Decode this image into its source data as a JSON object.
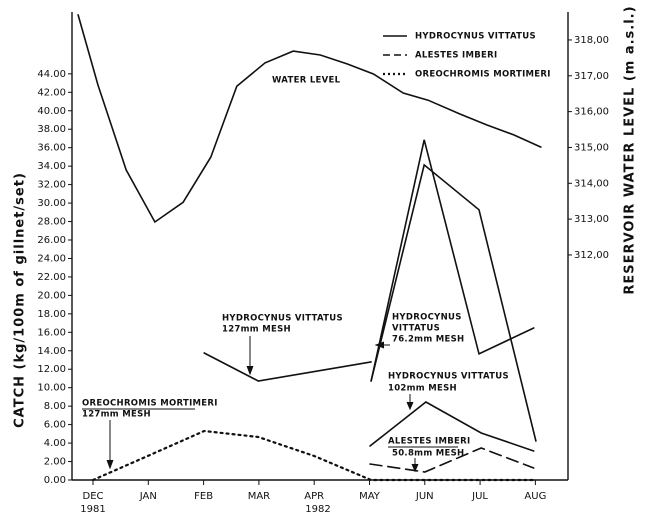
{
  "chart_data": {
    "type": "line",
    "y_label": "CATCH (kg/100m of gillnet/set)",
    "y2_label": "RESERVOIR WATER LEVEL (m a.s.l.)",
    "xlim": [
      -0.38,
      8.59
    ],
    "xticks": [
      {
        "value": 0,
        "label": "DEC"
      },
      {
        "value": 1,
        "label": "JAN"
      },
      {
        "value": 2,
        "label": "FEB"
      },
      {
        "value": 3,
        "label": "MAR"
      },
      {
        "value": 4,
        "label": "APR"
      },
      {
        "value": 5,
        "label": "MAY"
      },
      {
        "value": 6,
        "label": "JUN"
      },
      {
        "value": 7,
        "label": "JUL"
      },
      {
        "value": 8,
        "label": "AUG"
      }
    ],
    "x_years": [
      "1981",
      "1982"
    ],
    "ylim": [
      0,
      50.7
    ],
    "yticks": [
      {
        "value": 0,
        "label": "0.00"
      },
      {
        "value": 2,
        "label": "2.00"
      },
      {
        "value": 4,
        "label": "4.00"
      },
      {
        "value": 6,
        "label": "6.00"
      },
      {
        "value": 8,
        "label": "8.00"
      },
      {
        "value": 10,
        "label": "10.00"
      },
      {
        "value": 12,
        "label": "12.00"
      },
      {
        "value": 14,
        "label": "14.00"
      },
      {
        "value": 16,
        "label": "16.00"
      },
      {
        "value": 18,
        "label": "18.00"
      },
      {
        "value": 20,
        "label": "20.00"
      },
      {
        "value": 22,
        "label": "22.00"
      },
      {
        "value": 24,
        "label": "24.00"
      },
      {
        "value": 26,
        "label": "26.00"
      },
      {
        "value": 28,
        "label": "28.00"
      },
      {
        "value": 30,
        "label": "30.00"
      },
      {
        "value": 32,
        "label": "32.00"
      },
      {
        "value": 34,
        "label": "34.00"
      },
      {
        "value": 36,
        "label": "36.00"
      },
      {
        "value": 38,
        "label": "38.00"
      },
      {
        "value": 40,
        "label": "40.00"
      },
      {
        "value": 42,
        "label": "42.00"
      },
      {
        "value": 44,
        "label": "44.00"
      }
    ],
    "y2lim": [
      305.72,
      318.78
    ],
    "y2ticks": [
      {
        "value": 312,
        "label": "312,00"
      },
      {
        "value": 313,
        "label": "313,00"
      },
      {
        "value": 314,
        "label": "314,00"
      },
      {
        "value": 315,
        "label": "315,00"
      },
      {
        "value": 316,
        "label": "316,00"
      },
      {
        "value": 317,
        "label": "317,00"
      },
      {
        "value": 318,
        "label": "318,00"
      }
    ],
    "legend": [
      {
        "name": "HYDROCYNUS VITTATUS",
        "dash": "solid"
      },
      {
        "name": "ALESTES IMBERI",
        "dash": "dashed"
      },
      {
        "name": "OREOCHROMIS MORTIMERI",
        "dash": "dotted"
      }
    ],
    "series": [
      {
        "axis": "y2",
        "dash": "solid",
        "color": "#111111",
        "x": [
          -0.27,
          0.09,
          0.6,
          1.12,
          1.63,
          2.13,
          2.6,
          3.11,
          3.62,
          4.11,
          4.6,
          5.07,
          5.61,
          6.06,
          6.64,
          7.12,
          7.61,
          8.1
        ],
        "values": [
          318.7,
          316.74,
          314.37,
          312.92,
          313.47,
          314.73,
          316.71,
          317.36,
          317.69,
          317.58,
          317.33,
          317.05,
          316.52,
          316.32,
          315.93,
          315.63,
          315.35,
          315.01
        ]
      },
      {
        "axis": "y",
        "dash": "solid",
        "color": "#111111",
        "x": [
          2.01,
          2.99,
          5.03
        ],
        "values": [
          13.76,
          10.73,
          12.79
        ]
      },
      {
        "axis": "y",
        "dash": "solid",
        "color": "#111111",
        "x": [
          5.03,
          5.99,
          6.98,
          7.97
        ],
        "values": [
          10.73,
          36.85,
          13.66,
          16.47
        ]
      },
      {
        "axis": "y",
        "dash": "solid",
        "color": "#111111",
        "x": [
          5.03,
          5.99,
          6.98,
          8.01
        ],
        "values": [
          10.73,
          34.14,
          29.27,
          4.23
        ]
      },
      {
        "axis": "y",
        "dash": "solid",
        "color": "#111111",
        "x": [
          5.01,
          6.02,
          7.02,
          7.97
        ],
        "values": [
          3.68,
          8.45,
          5.09,
          3.14
        ]
      },
      {
        "axis": "y",
        "dash": "dashed",
        "color": "#111111",
        "x": [
          5.01,
          6.0,
          7.02,
          7.97
        ],
        "values": [
          1.73,
          0.87,
          3.47,
          1.3
        ]
      },
      {
        "axis": "y",
        "dash": "dotted",
        "color": "#111111",
        "x": [
          0,
          1.03,
          2.01,
          2.99,
          4.0,
          5.03,
          6,
          7,
          8
        ],
        "values": [
          0,
          2.71,
          5.31,
          4.66,
          2.6,
          0,
          0,
          0,
          0
        ]
      }
    ],
    "annotations": [
      "WATER LEVEL",
      "HYDROCYNUS VITTATUS",
      "127mm MESH",
      "HYDROCYNUS",
      "VITTATUS",
      "76.2mm MESH",
      "HYDROCYNUS VITTATUS",
      "102mm MESH",
      "ALESTES IMBERI",
      "50.8mm MESH",
      "OREOCHROMIS MORTIMERI",
      "127mm MESH"
    ]
  }
}
